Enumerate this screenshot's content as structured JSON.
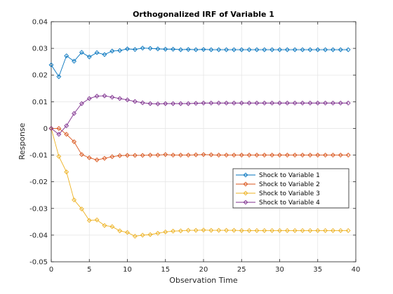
{
  "chart_data": {
    "type": "line",
    "title": "Orthogonalized IRF of Variable 1",
    "xlabel": "Observation Time",
    "ylabel": "Response",
    "xlim": [
      0,
      40
    ],
    "ylim": [
      -0.05,
      0.04
    ],
    "xticks": [
      0,
      5,
      10,
      15,
      20,
      25,
      30,
      35,
      40
    ],
    "xtick_labels": [
      "0",
      "5",
      "10",
      "15",
      "20",
      "25",
      "30",
      "35",
      "40"
    ],
    "yticks": [
      -0.05,
      -0.04,
      -0.03,
      -0.02,
      -0.01,
      0,
      0.01,
      0.02,
      0.03,
      0.04
    ],
    "ytick_labels": [
      "-0.05",
      "-0.04",
      "-0.03",
      "-0.02",
      "-0.01",
      "0",
      "0.01",
      "0.02",
      "0.03",
      "0.04"
    ],
    "grid": true,
    "legend_position": "inside-right",
    "x": [
      0,
      1,
      2,
      3,
      4,
      5,
      6,
      7,
      8,
      9,
      10,
      11,
      12,
      13,
      14,
      15,
      16,
      17,
      18,
      19,
      20,
      21,
      22,
      23,
      24,
      25,
      26,
      27,
      28,
      29,
      30,
      31,
      32,
      33,
      34,
      35,
      36,
      37,
      38,
      39
    ],
    "series": [
      {
        "name": "Shock to Variable 1",
        "color": "#0072BD",
        "values": [
          0.0238,
          0.0194,
          0.0272,
          0.0252,
          0.0285,
          0.0268,
          0.0284,
          0.0277,
          0.029,
          0.0292,
          0.0298,
          0.0296,
          0.0301,
          0.03,
          0.0298,
          0.0297,
          0.0297,
          0.0295,
          0.0296,
          0.0295,
          0.0296,
          0.0295,
          0.0295,
          0.0295,
          0.0295,
          0.0295,
          0.0295,
          0.0295,
          0.0295,
          0.0295,
          0.0295,
          0.0295,
          0.0295,
          0.0295,
          0.0295,
          0.0295,
          0.0295,
          0.0295,
          0.0295,
          0.0295
        ]
      },
      {
        "name": "Shock to Variable 2",
        "color": "#D95319",
        "values": [
          0,
          0.0,
          -0.0022,
          -0.005,
          -0.0098,
          -0.011,
          -0.0118,
          -0.0112,
          -0.0106,
          -0.0102,
          -0.0101,
          -0.0101,
          -0.0101,
          -0.01,
          -0.01,
          -0.0098,
          -0.01,
          -0.01,
          -0.01,
          -0.0099,
          -0.0098,
          -0.0099,
          -0.01,
          -0.01,
          -0.01,
          -0.01,
          -0.01,
          -0.01,
          -0.01,
          -0.01,
          -0.01,
          -0.01,
          -0.01,
          -0.01,
          -0.01,
          -0.01,
          -0.01,
          -0.01,
          -0.01,
          -0.01
        ]
      },
      {
        "name": "Shock to Variable 3",
        "color": "#EDB120",
        "values": [
          0,
          -0.0105,
          -0.0163,
          -0.0268,
          -0.0302,
          -0.0345,
          -0.0343,
          -0.0364,
          -0.0368,
          -0.0384,
          -0.039,
          -0.0404,
          -0.04,
          -0.0398,
          -0.0393,
          -0.0388,
          -0.0385,
          -0.0384,
          -0.0382,
          -0.0382,
          -0.0381,
          -0.0382,
          -0.0382,
          -0.0382,
          -0.0382,
          -0.0383,
          -0.0383,
          -0.0383,
          -0.0383,
          -0.0383,
          -0.0383,
          -0.0383,
          -0.0383,
          -0.0383,
          -0.0383,
          -0.0383,
          -0.0383,
          -0.0383,
          -0.0383,
          -0.0383
        ]
      },
      {
        "name": "Shock to Variable 4",
        "color": "#7E2F8E",
        "values": [
          0,
          -0.0022,
          0.001,
          0.0056,
          0.0093,
          0.0112,
          0.0121,
          0.0122,
          0.0117,
          0.0112,
          0.0107,
          0.0101,
          0.0096,
          0.0093,
          0.0092,
          0.0093,
          0.0093,
          0.0093,
          0.0093,
          0.0094,
          0.0095,
          0.0095,
          0.0095,
          0.0095,
          0.0095,
          0.0095,
          0.0095,
          0.0095,
          0.0095,
          0.0095,
          0.0095,
          0.0095,
          0.0095,
          0.0095,
          0.0095,
          0.0095,
          0.0095,
          0.0095,
          0.0095,
          0.0095
        ]
      }
    ]
  }
}
